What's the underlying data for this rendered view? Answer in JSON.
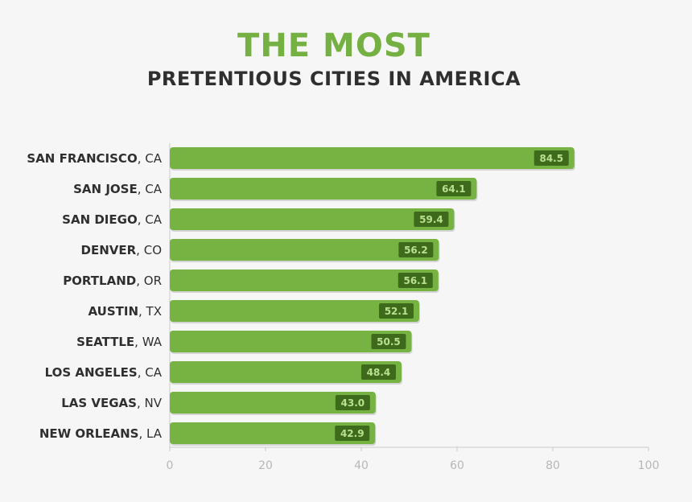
{
  "title": {
    "line1": "THE MOST",
    "line2": "PRETENTIOUS CITIES IN AMERICA"
  },
  "colors": {
    "accent": "#75b043",
    "bar": "#76b343",
    "value_box": "#3d6a1b",
    "value_text": "#b9e08f",
    "axis": "#c9c9c9"
  },
  "chart_data": {
    "type": "bar",
    "orientation": "horizontal",
    "title": "THE MOST PRETENTIOUS CITIES IN AMERICA",
    "categories": [
      {
        "city": "SAN FRANCISCO",
        "state": "CA"
      },
      {
        "city": "SAN JOSE",
        "state": "CA"
      },
      {
        "city": "SAN DIEGO",
        "state": "CA"
      },
      {
        "city": "DENVER",
        "state": "CO"
      },
      {
        "city": "PORTLAND",
        "state": "OR"
      },
      {
        "city": "AUSTIN",
        "state": "TX"
      },
      {
        "city": "SEATTLE",
        "state": "WA"
      },
      {
        "city": "LOS ANGELES",
        "state": "CA"
      },
      {
        "city": "LAS VEGAS",
        "state": "NV"
      },
      {
        "city": "NEW ORLEANS",
        "state": "LA"
      }
    ],
    "values": [
      84.5,
      64.1,
      59.4,
      56.2,
      56.1,
      52.1,
      50.5,
      48.4,
      43.0,
      42.9
    ],
    "value_labels": [
      "84.5",
      "64.1",
      "59.4",
      "56.2",
      "56.1",
      "52.1",
      "50.5",
      "48.4",
      "43.0",
      "42.9"
    ],
    "xlim": [
      0,
      100
    ],
    "xticks": [
      0,
      20,
      40,
      60,
      80,
      100
    ],
    "xlabel": "",
    "ylabel": "",
    "grid": false
  }
}
